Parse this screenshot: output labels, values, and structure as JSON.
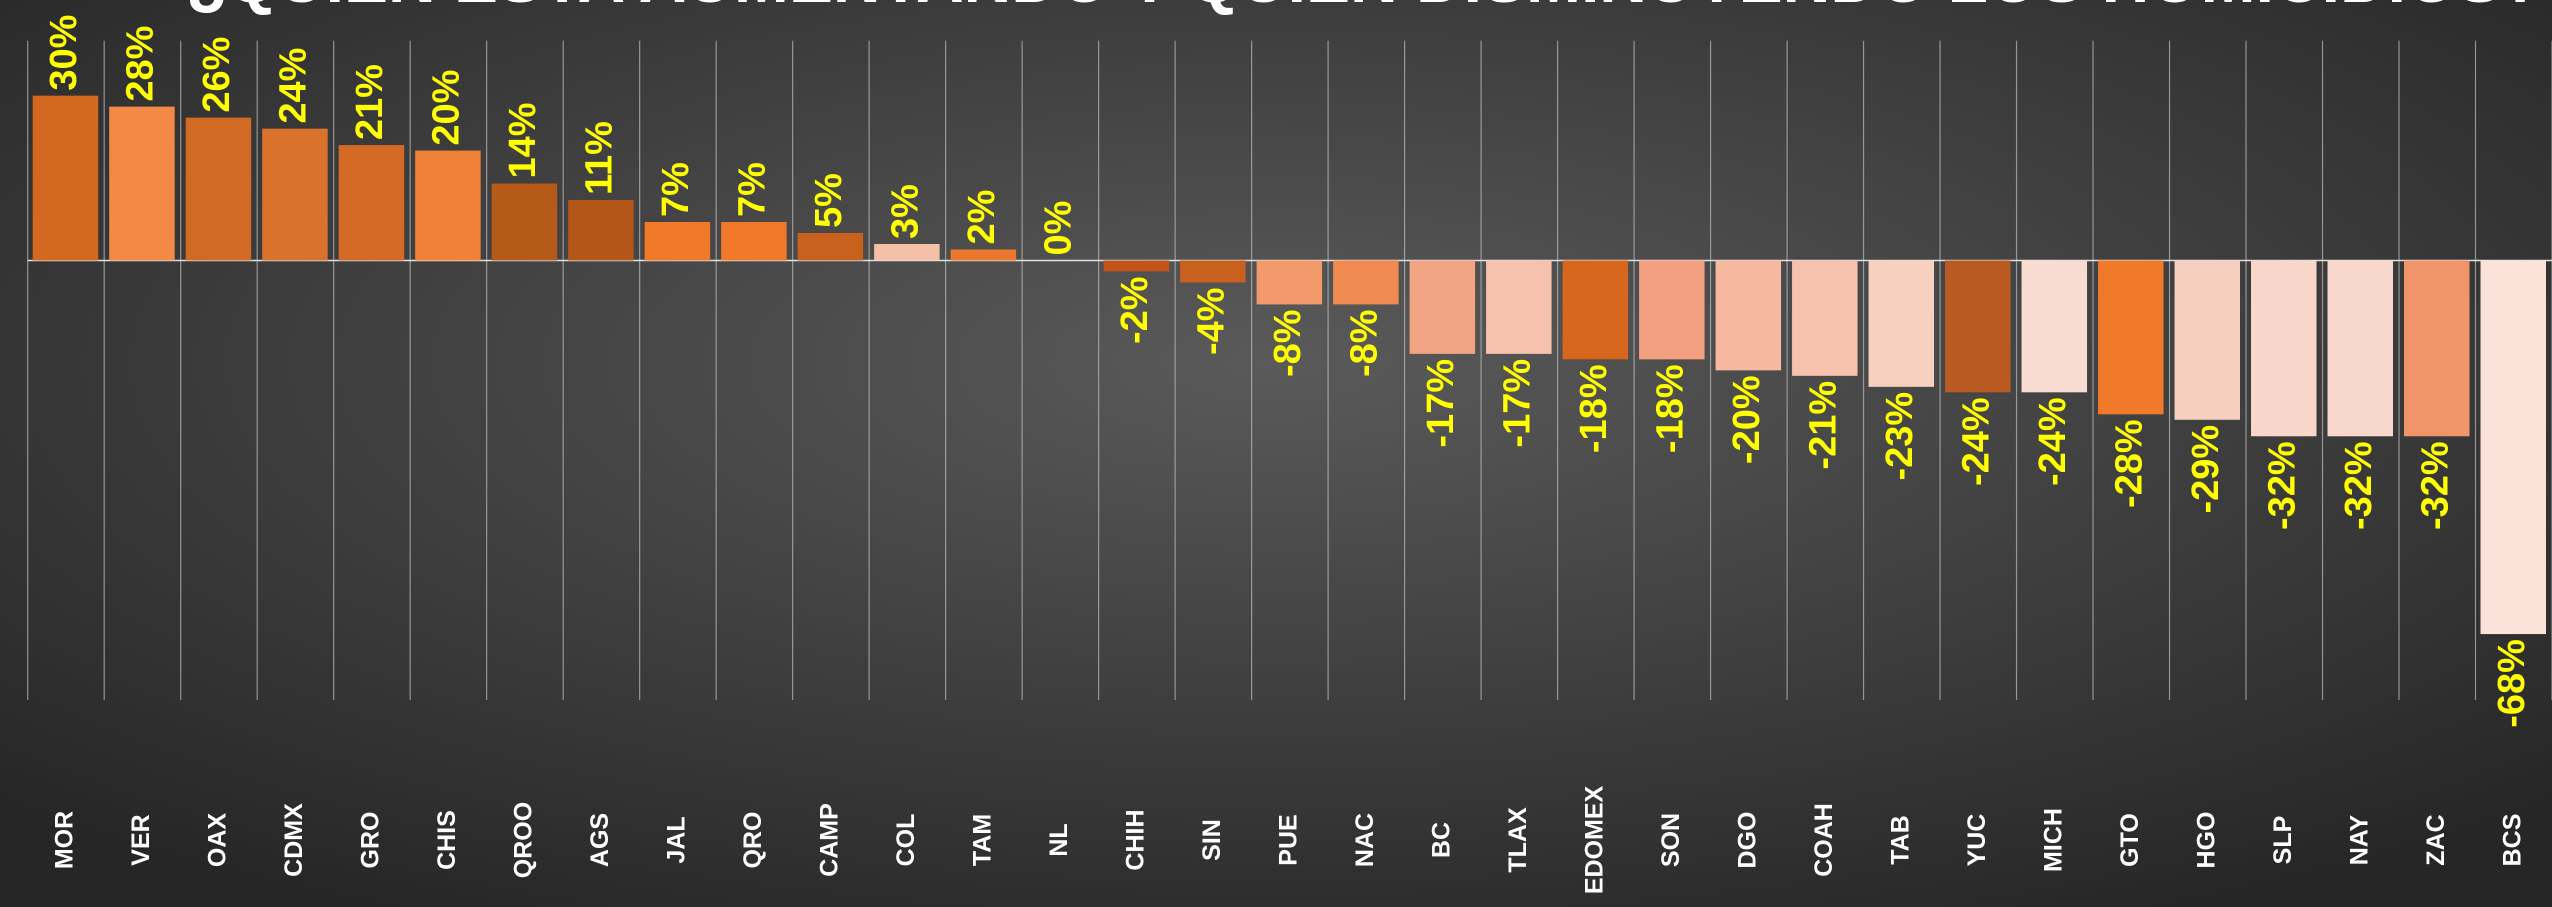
{
  "chart_data": {
    "type": "bar",
    "title": "¿QUIEN ESTA AUMENTANDO Y QUIEN DISMINUYENDO LOS HOMICIDIOS?",
    "categories": [
      "MOR",
      "VER",
      "OAX",
      "CDMX",
      "GRO",
      "CHIS",
      "QROO",
      "AGS",
      "JAL",
      "QRO",
      "CAMP",
      "COL",
      "TAM",
      "NL",
      "CHIH",
      "SIN",
      "PUE",
      "NAC",
      "BC",
      "TLAX",
      "EDOMEX",
      "SON",
      "DGO",
      "COAH",
      "TAB",
      "YUC",
      "MICH",
      "GTO",
      "HGO",
      "SLP",
      "NAY",
      "ZAC",
      "BCS"
    ],
    "values": [
      30,
      28,
      26,
      24,
      21,
      20,
      14,
      11,
      7,
      7,
      5,
      3,
      2,
      0,
      -2,
      -4,
      -8,
      -8,
      -17,
      -17,
      -18,
      -18,
      -20,
      -21,
      -23,
      -24,
      -24,
      -28,
      -29,
      -32,
      -32,
      -32,
      -68
    ],
    "value_labels": [
      "30%",
      "28%",
      "26%",
      "24%",
      "21%",
      "20%",
      "14%",
      "11%",
      "7%",
      "7%",
      "5%",
      "3%",
      "2%",
      "0%",
      "-2%",
      "-4%",
      "-8%",
      "-8%",
      "-17%",
      "-17%",
      "-18%",
      "-18%",
      "-20%",
      "-21%",
      "-23%",
      "-24%",
      "-24%",
      "-28%",
      "-29%",
      "-32%",
      "-32%",
      "-32%",
      "-68%"
    ],
    "colors": [
      "#d2691e",
      "#f28a45",
      "#d06a24",
      "#d9722c",
      "#d46a26",
      "#f08238",
      "#b65a1a",
      "#b35618",
      "#f07a2a",
      "#f07a2a",
      "#c8601e",
      "#f5c0a8",
      "#e9772e",
      "#e9772e",
      "#c0561a",
      "#c8601e",
      "#f29a6c",
      "#f08a50",
      "#f2a585",
      "#f6c2ae",
      "#d8671e",
      "#f2a080",
      "#f6b8a0",
      "#f6c2ae",
      "#f8d0c0",
      "#b85a22",
      "#f8dcd2",
      "#f07a2a",
      "#f6cfc0",
      "#f8d6ca",
      "#f8d8cc",
      "#f0946a",
      "#fbe3da"
    ],
    "ylim": [
      -80,
      40
    ]
  }
}
